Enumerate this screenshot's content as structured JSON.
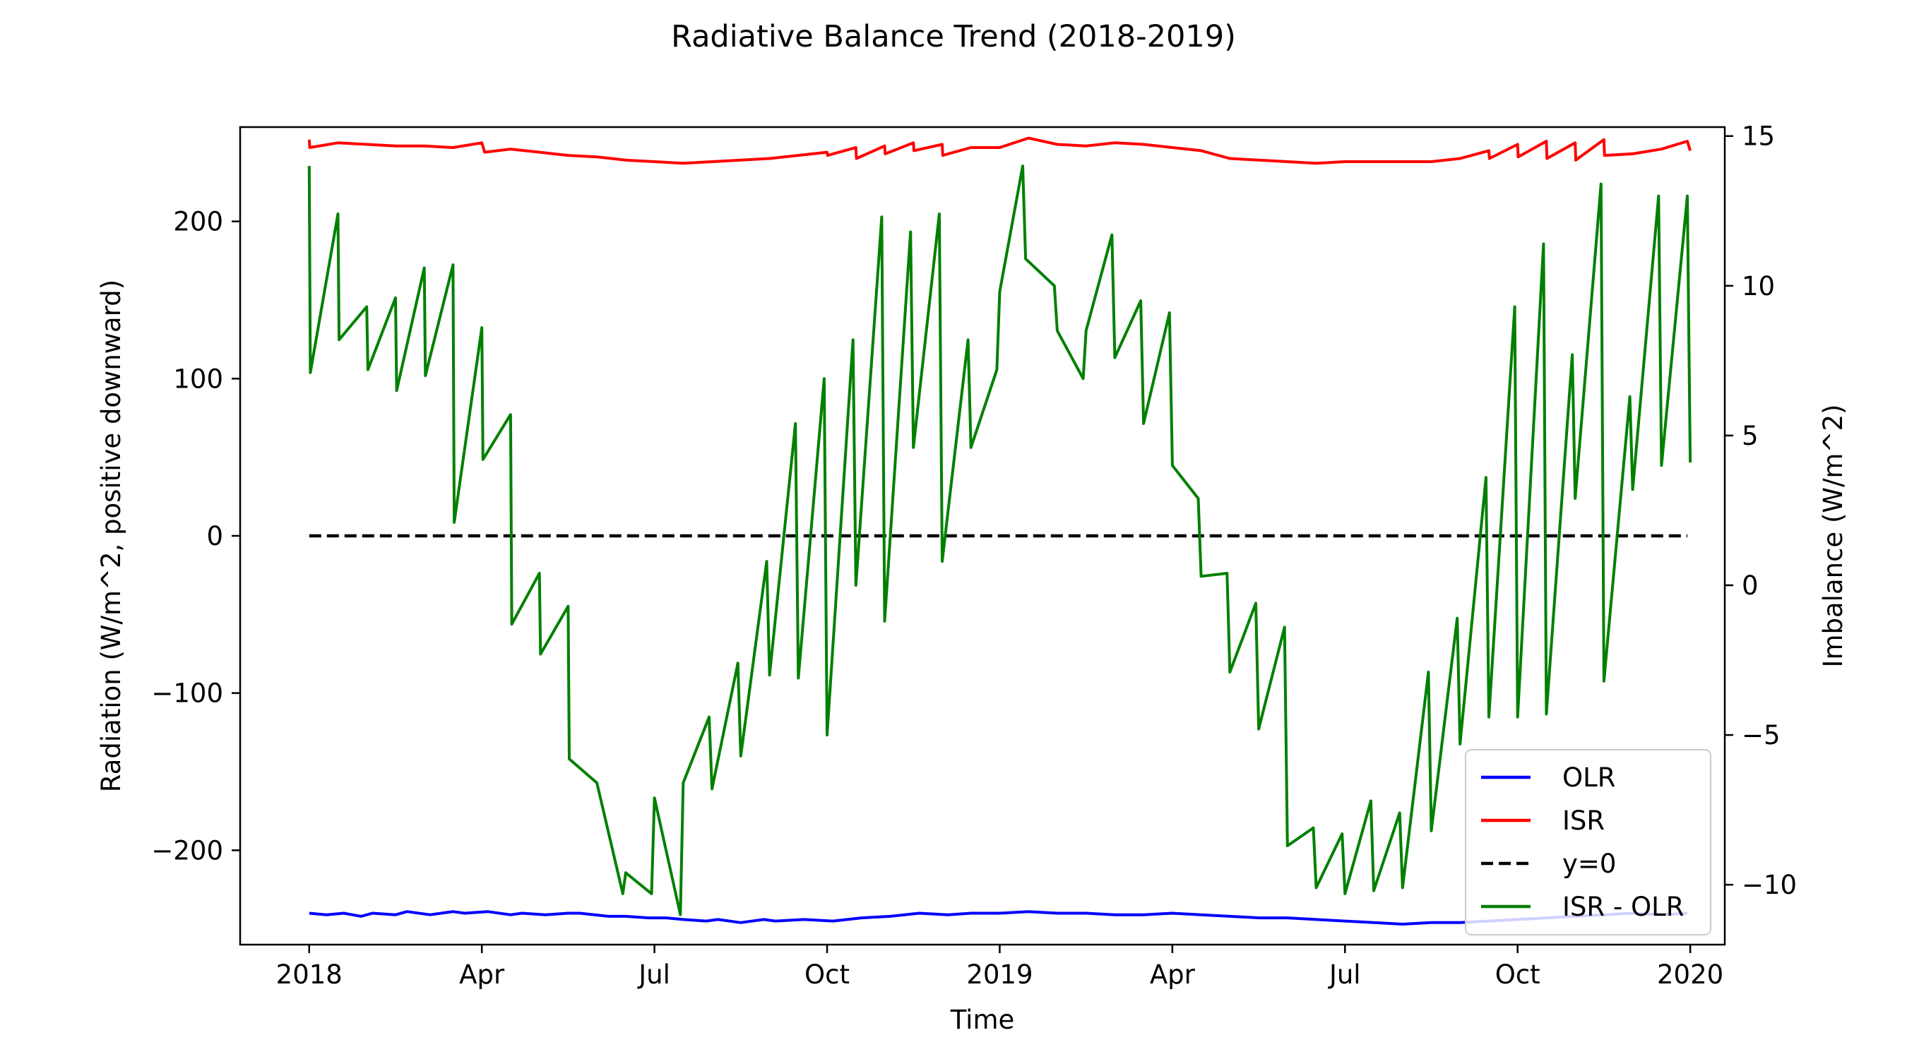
{
  "chart_data": {
    "type": "line",
    "title": "Radiative Balance Trend (2018-2019)",
    "xlabel": "Time",
    "ylabel_left": "Radiation (W/m^2, positive downward)",
    "ylabel_right": "Imbalance (W/m^2)",
    "x_ticks": [
      "2018",
      "Apr",
      "Jul",
      "Oct",
      "2019",
      "Apr",
      "Jul",
      "Oct",
      "2020"
    ],
    "y_left_ticks": [
      "200",
      "100",
      "0",
      "−100",
      "−200"
    ],
    "y_right_ticks": [
      "15",
      "10",
      "5",
      "0",
      "−5",
      "−10"
    ],
    "ylim_left": [
      -260,
      260
    ],
    "ylim_right": [
      -12,
      15.3
    ],
    "xlim_months": [
      -1.2,
      24.6
    ],
    "x_unit": "months since 2018-01",
    "grid": false,
    "legend_position": "lower-right",
    "series": [
      {
        "name": "OLR",
        "axis": "left",
        "color": "#0000ff",
        "x": [
          0,
          0.3,
          0.6,
          0.9,
          1.1,
          1.5,
          1.7,
          2.1,
          2.5,
          2.7,
          3.1,
          3.5,
          3.7,
          4.1,
          4.5,
          4.7,
          5.2,
          5.5,
          5.9,
          6.2,
          6.5,
          6.9,
          7.1,
          7.5,
          7.9,
          8.1,
          8.6,
          9.1,
          9.6,
          10.1,
          10.6,
          11.1,
          11.5,
          12.0,
          12.5,
          13.0,
          13.5,
          14.0,
          14.5,
          15.0,
          15.5,
          16.0,
          16.5,
          17.0,
          17.5,
          18.0,
          18.5,
          19.0,
          19.5,
          20.0,
          20.5,
          21.0,
          21.5,
          22.0,
          22.5,
          23.0,
          23.5,
          23.95
        ],
        "y": [
          -240,
          -241,
          -240,
          -242,
          -240,
          -241,
          -239,
          -241,
          -239,
          -240,
          -239,
          -241,
          -240,
          -241,
          -240,
          -240,
          -242,
          -242,
          -243,
          -243,
          -244,
          -245,
          -244,
          -246,
          -244,
          -245,
          -244,
          -245,
          -243,
          -242,
          -240,
          -241,
          -240,
          -240,
          -239,
          -240,
          -240,
          -241,
          -241,
          -240,
          -241,
          -242,
          -243,
          -243,
          -244,
          -245,
          -246,
          -247,
          -246,
          -246,
          -245,
          -244,
          -243,
          -242,
          -241,
          -240,
          -241,
          -240
        ]
      },
      {
        "name": "ISR",
        "axis": "left",
        "color": "#ff0000",
        "x": [
          0,
          0.01,
          0.5,
          1.0,
          1.5,
          2.0,
          2.5,
          3.0,
          3.05,
          3.5,
          4.0,
          4.5,
          5.0,
          5.5,
          6.0,
          6.5,
          7.0,
          7.5,
          8.0,
          8.5,
          9.0,
          9.01,
          9.5,
          9.51,
          10.0,
          10.01,
          10.5,
          10.51,
          11.0,
          11.01,
          11.5,
          12.0,
          12.5,
          13.0,
          13.5,
          14.0,
          14.5,
          15.0,
          15.5,
          16.0,
          16.5,
          17.0,
          17.5,
          18.0,
          18.5,
          19.0,
          19.5,
          20.0,
          20.5,
          20.51,
          21.0,
          21.01,
          21.5,
          21.51,
          22.0,
          22.01,
          22.5,
          22.51,
          23.0,
          23.5,
          23.95,
          24.0
        ],
        "y": [
          252,
          247,
          250,
          249,
          248,
          248,
          247,
          250,
          244,
          246,
          244,
          242,
          241,
          239,
          238,
          237,
          238,
          239,
          240,
          242,
          244,
          242,
          247,
          240,
          248,
          243,
          250,
          245,
          249,
          242,
          247,
          247,
          253,
          249,
          248,
          250,
          249,
          247,
          245,
          240,
          239,
          238,
          237,
          238,
          238,
          238,
          238,
          240,
          245,
          240,
          249,
          241,
          251,
          240,
          250,
          239,
          252,
          242,
          243,
          246,
          251,
          245
        ]
      },
      {
        "name": "y=0",
        "axis": "left",
        "color": "#000000",
        "dashed": true,
        "x": [
          0,
          23.95
        ],
        "y": [
          0,
          0
        ]
      },
      {
        "name": "ISR - OLR",
        "axis": "right",
        "color": "#008000",
        "x": [
          0,
          0.02,
          0.5,
          0.52,
          1.0,
          1.02,
          1.5,
          1.52,
          2.0,
          2.02,
          2.5,
          2.52,
          3.0,
          3.02,
          3.5,
          3.52,
          4.0,
          4.02,
          4.5,
          4.52,
          5.0,
          5.45,
          5.5,
          5.95,
          6.0,
          6.45,
          6.5,
          6.95,
          7.0,
          7.45,
          7.5,
          7.95,
          8.0,
          8.45,
          8.5,
          8.95,
          9.0,
          9.45,
          9.5,
          9.95,
          10.0,
          10.45,
          10.5,
          10.95,
          11.0,
          11.45,
          11.5,
          11.95,
          12.0,
          12.4,
          12.45,
          12.95,
          13.0,
          13.45,
          13.5,
          13.95,
          14.0,
          14.45,
          14.5,
          14.95,
          15.0,
          15.45,
          15.5,
          15.95,
          16.0,
          16.45,
          16.5,
          16.95,
          17.0,
          17.45,
          17.5,
          17.95,
          18.0,
          18.45,
          18.5,
          18.95,
          19.0,
          19.45,
          19.5,
          19.95,
          20.0,
          20.45,
          20.5,
          20.95,
          21.0,
          21.45,
          21.5,
          21.95,
          22.0,
          22.45,
          22.5,
          22.95,
          23.0,
          23.45,
          23.5,
          23.95,
          24.0
        ],
        "y": [
          14.0,
          7.1,
          12.4,
          8.2,
          9.3,
          7.2,
          9.6,
          6.5,
          10.6,
          7.0,
          10.7,
          2.1,
          8.6,
          4.2,
          5.7,
          -1.3,
          0.4,
          -2.3,
          -0.7,
          -5.8,
          -6.6,
          -10.3,
          -9.6,
          -10.3,
          -7.1,
          -11.0,
          -6.6,
          -4.4,
          -6.8,
          -2.6,
          -5.7,
          0.8,
          -3.0,
          5.4,
          -3.1,
          6.9,
          -5.0,
          8.2,
          0.0,
          12.3,
          -1.2,
          11.8,
          4.6,
          12.4,
          0.8,
          8.2,
          4.6,
          7.2,
          9.8,
          14.0,
          10.9,
          10.0,
          8.5,
          6.9,
          8.5,
          11.7,
          7.6,
          9.5,
          5.4,
          9.1,
          4.0,
          2.9,
          0.3,
          0.4,
          -2.9,
          -0.6,
          -4.8,
          -1.4,
          -8.7,
          -8.1,
          -10.1,
          -8.3,
          -10.3,
          -7.2,
          -10.2,
          -7.6,
          -10.1,
          -2.9,
          -8.2,
          -1.1,
          -5.3,
          3.6,
          -4.4,
          9.3,
          -4.4,
          11.4,
          -4.3,
          7.7,
          2.9,
          13.4,
          -3.2,
          6.3,
          3.2,
          13.0,
          4.0,
          13.0,
          4.1
        ]
      }
    ]
  }
}
